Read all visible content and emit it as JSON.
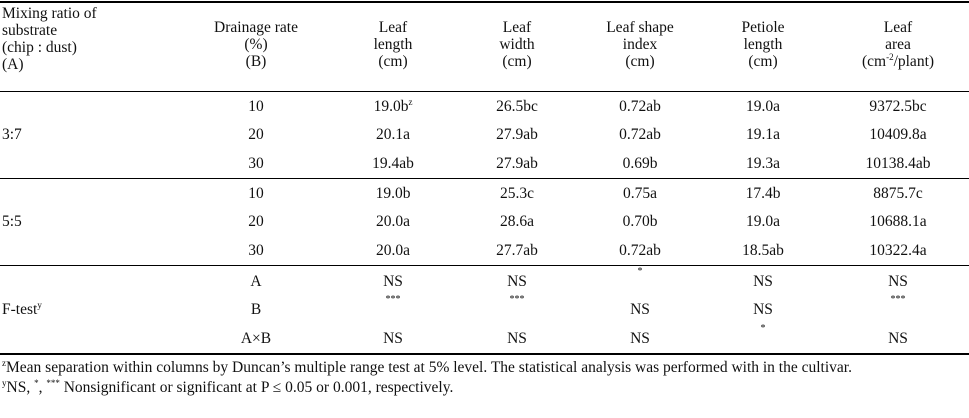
{
  "headers": {
    "a": [
      "Mixing ratio of",
      "substrate",
      "(chip : dust)",
      "(A)"
    ],
    "b": [
      "Drainage rate",
      "(%)",
      "(B)"
    ],
    "c1": [
      "Leaf",
      "length",
      "(cm)"
    ],
    "c2": [
      "Leaf",
      "width",
      "(cm)"
    ],
    "c3": [
      "Leaf shape",
      "index",
      "(cm)"
    ],
    "c4": [
      "Petiole",
      "length",
      "(cm)"
    ],
    "c5_l1": "Leaf",
    "c5_l2a": "area",
    "c5_l3a": "(cm",
    "c5_l3sup": "-2",
    "c5_l3b": "/plant)"
  },
  "groups": [
    {
      "label": "3:7",
      "rows": [
        {
          "rate": "10",
          "length": "19.0b",
          "length_sup": "z",
          "width": "26.5bc",
          "shape": "0.72ab",
          "petiole": "19.0a",
          "area": "9372.5bc"
        },
        {
          "rate": "20",
          "length": "20.1a",
          "width": "27.9ab",
          "shape": "0.72ab",
          "petiole": "19.1a",
          "area": "10409.8a"
        },
        {
          "rate": "30",
          "length": "19.4ab",
          "width": "27.9ab",
          "shape": "0.69b",
          "petiole": "19.3a",
          "area": "10138.4ab"
        }
      ]
    },
    {
      "label": "5:5",
      "rows": [
        {
          "rate": "10",
          "length": "19.0b",
          "width": "25.3c",
          "shape": "0.75a",
          "petiole": "17.4b",
          "area": "8875.7c"
        },
        {
          "rate": "20",
          "length": "20.0a",
          "width": "28.6a",
          "shape": "0.70b",
          "petiole": "19.0a",
          "area": "10688.1a"
        },
        {
          "rate": "30",
          "length": "20.0a",
          "width": "27.7ab",
          "shape": "0.72ab",
          "petiole": "18.5ab",
          "area": "10322.4a"
        }
      ]
    }
  ],
  "ftest": {
    "label": "F-test",
    "label_sup": "y",
    "rows": [
      {
        "factor": "A",
        "length": "NS",
        "width": "NS",
        "shape": "*",
        "petiole": "NS",
        "area": "NS"
      },
      {
        "factor": "B",
        "length": "***",
        "width": "***",
        "shape": "NS",
        "petiole": "NS",
        "area": "***"
      },
      {
        "factor": "A×B",
        "length": "NS",
        "width": "NS",
        "shape": "NS",
        "petiole": "*",
        "area": "NS"
      }
    ]
  },
  "notes": {
    "z_sup": "z",
    "z_text": "Mean separation within columns by Duncan’s multiple range test at 5% level. The statistical analysis was performed with in the cultivar.",
    "y_sup": "y",
    "y_text1": "NS, ",
    "y_star1": "*",
    "y_text2": ", ",
    "y_star3": "***",
    "y_text3": " Nonsignificant or significant at P ≤ 0.05 or 0.001, respectively."
  }
}
